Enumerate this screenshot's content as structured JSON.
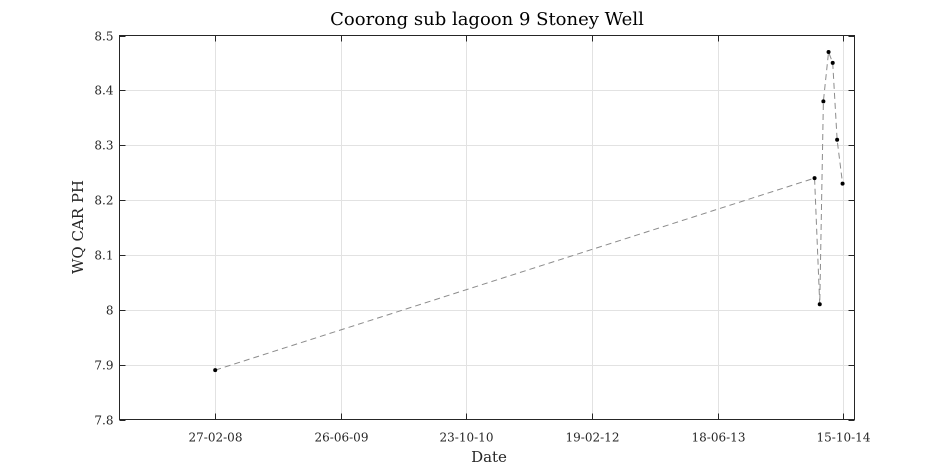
{
  "chart_data": {
    "type": "line",
    "title": "Coorong sub lagoon 9 Stoney Well",
    "xlabel": "Date",
    "ylabel": "WQ CAR PH",
    "x_tick_labels": [
      "27-02-08",
      "26-06-09",
      "23-10-10",
      "19-02-12",
      "18-06-13",
      "15-10-14"
    ],
    "x_tick_dates": [
      "2008-02-27",
      "2009-06-26",
      "2010-10-23",
      "2012-02-19",
      "2013-06-18",
      "2014-10-15"
    ],
    "xlim": [
      "2007-02-24",
      "2014-11-28"
    ],
    "ylim": [
      7.8,
      8.5
    ],
    "y_ticks": [
      7.8,
      7.9,
      8.0,
      8.1,
      8.2,
      8.3,
      8.4,
      8.5
    ],
    "y_tick_labels": [
      "7.8",
      "7.9",
      "8",
      "8.1",
      "8.2",
      "8.3",
      "8.4",
      "8.5"
    ],
    "grid": true,
    "series": [
      {
        "line_style": "dashed",
        "line_color": "#8c8c8c",
        "marker_color": "#000000",
        "points": [
          {
            "x": "2008-02-28",
            "y": 7.89
          },
          {
            "x": "2014-06-27",
            "y": 8.24
          },
          {
            "x": "2014-07-17",
            "y": 8.01
          },
          {
            "x": "2014-07-31",
            "y": 8.38
          },
          {
            "x": "2014-08-20",
            "y": 8.47
          },
          {
            "x": "2014-09-05",
            "y": 8.45
          },
          {
            "x": "2014-09-22",
            "y": 8.31
          },
          {
            "x": "2014-10-13",
            "y": 8.23
          }
        ]
      }
    ]
  }
}
